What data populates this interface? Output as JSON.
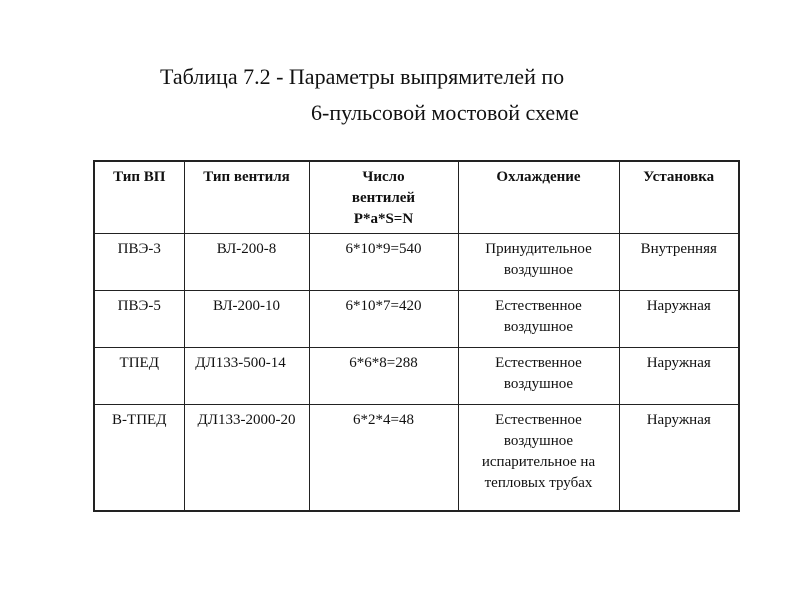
{
  "title": {
    "line1": "Таблица 7.2 - Параметры выпрямителей по",
    "line2": "6-пульсовой мостовой схеме"
  },
  "table": {
    "headers": [
      "Тип ВП",
      "Тип вентиля",
      "Число вентилей P*a*S=N",
      "Охлаждение",
      "Установка"
    ],
    "rows": [
      [
        "ПВЭ-3",
        "ВЛ-200-8",
        "6*10*9=540",
        "Принудительное воздушное",
        "Внутренняя"
      ],
      [
        "ПВЭ-5",
        "ВЛ-200-10",
        "6*10*7=420",
        "Естественное воздушное",
        "Наружная"
      ],
      [
        "ТПЕД",
        "ДЛ133-500-14",
        "6*6*8=288",
        "Естественное воздушное",
        "Наружная"
      ],
      [
        "В-ТПЕД",
        "ДЛ133-2000-20",
        "6*2*4=48",
        "Естественное воздушное испарительное на тепловых трубах",
        "Наружная"
      ]
    ]
  }
}
